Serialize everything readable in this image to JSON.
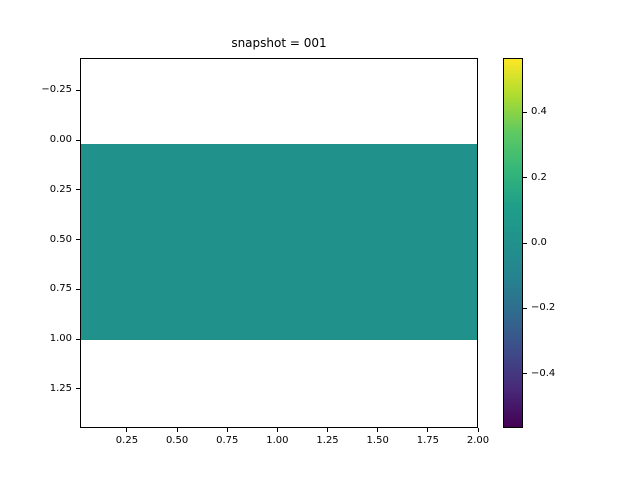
{
  "chart_data": {
    "type": "heatmap",
    "title": "snapshot = 001",
    "xlabel": "",
    "ylabel": "",
    "colormap": "viridis",
    "grid": false,
    "xlim": [
      0.016,
      2.0
    ],
    "ylim_top": -0.412,
    "ylim_bottom": 1.447,
    "y_axis_inverted": true,
    "x_ticks": {
      "values": [
        0.25,
        0.5,
        0.75,
        1.0,
        1.25,
        1.5,
        1.75,
        2.0
      ],
      "labels": [
        "0.25",
        "0.50",
        "0.75",
        "1.00",
        "1.25",
        "1.50",
        "1.75",
        "2.00"
      ]
    },
    "y_ticks": {
      "values": [
        -0.25,
        0.0,
        0.25,
        0.5,
        0.75,
        1.0,
        1.25
      ],
      "labels": [
        "−0.25",
        "0.00",
        "0.25",
        "0.50",
        "0.75",
        "1.00",
        "1.25"
      ]
    },
    "band": {
      "x0": 0.016,
      "x1": 2.0,
      "y0": 0.016,
      "y1": 1.0,
      "value": 0.0,
      "color": "#21918c"
    },
    "colorbar": {
      "position": "right",
      "vmin": -0.566,
      "vmax": 0.566,
      "tick_values": [
        0.4,
        0.2,
        0.0,
        -0.2,
        -0.4
      ],
      "tick_labels": [
        "0.4",
        "0.2",
        "0.0",
        "−0.2",
        "−0.4"
      ],
      "gradient_stops_bottom_to_top": [
        "#440154",
        "#482878",
        "#3e4a89",
        "#31688e",
        "#26828e",
        "#21918c",
        "#1f9e89",
        "#35b779",
        "#5ec962",
        "#addc30",
        "#fde725"
      ]
    },
    "colors": {
      "background": "#ffffff",
      "axes_edge": "#000000",
      "text": "#000000",
      "band_fill": "#21918c"
    }
  }
}
